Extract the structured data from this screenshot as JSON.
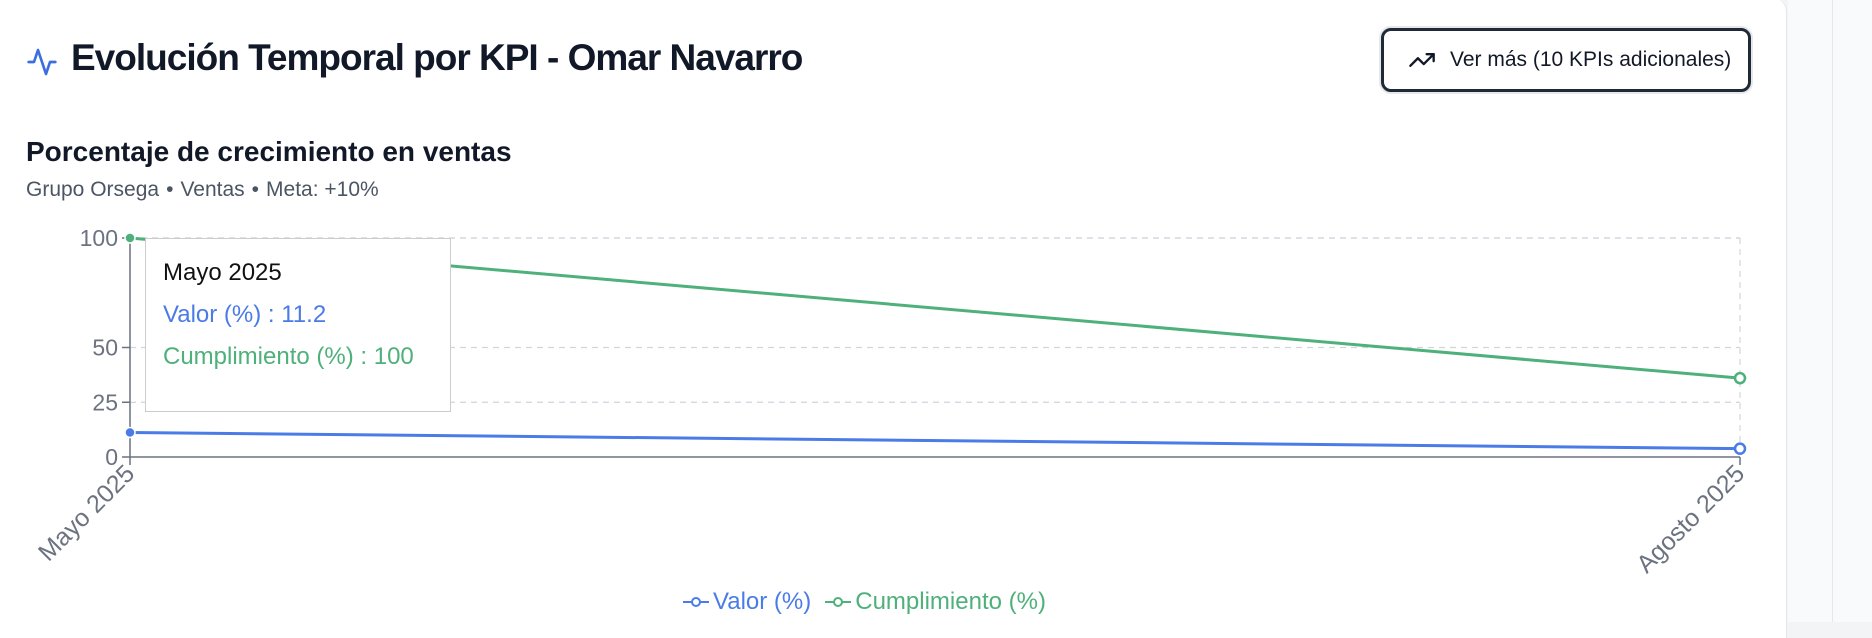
{
  "header": {
    "title": "Evolución Temporal por KPI - Omar Navarro",
    "more_button_label": "Ver más (10 KPIs adicionales)"
  },
  "icons": {
    "header": "activity-pulse-icon",
    "more_button": "trending-up-icon"
  },
  "colors": {
    "valor": "#4a7be6",
    "cumplimiento": "#4eb07a",
    "header_icon": "#3b6fe0"
  },
  "chart_data": {
    "type": "line",
    "title": "Porcentaje de crecimiento en ventas",
    "subtitle": {
      "group": "Grupo Orsega",
      "area": "Ventas",
      "goal": "Meta: +10%"
    },
    "x": [
      "Mayo 2025",
      "Agosto 2025"
    ],
    "series": [
      {
        "name": "Valor (%)",
        "values": [
          11.2,
          3.8
        ]
      },
      {
        "name": "Cumplimiento (%)",
        "values": [
          100,
          36
        ]
      }
    ],
    "yticks": [
      0,
      25,
      50,
      100
    ],
    "ylim": [
      0,
      100
    ],
    "grid": true,
    "legend": "bottom",
    "tooltip": {
      "title": "Mayo 2025",
      "rows": [
        "Valor (%) : 11.2",
        "Cumplimiento (%) : 100"
      ]
    }
  }
}
